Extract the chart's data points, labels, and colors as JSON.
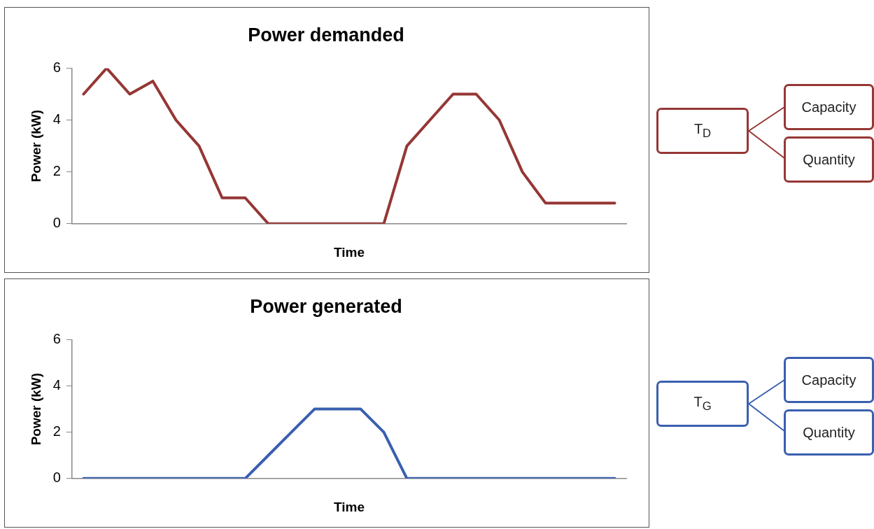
{
  "chart_data": [
    {
      "type": "line",
      "title": "Power demanded",
      "xlabel": "Time",
      "ylabel": "Power (kW)",
      "categories": [
        null,
        null,
        null,
        null,
        null,
        null,
        null,
        null,
        null,
        null,
        null,
        null,
        null,
        null,
        null,
        null,
        null,
        null,
        null,
        null,
        null,
        null,
        null,
        null
      ],
      "series": [
        {
          "color": "#953735",
          "values": [
            5,
            6,
            5,
            5.5,
            4,
            3,
            1,
            1,
            0,
            0,
            0,
            0,
            0,
            0,
            3,
            4,
            5,
            5,
            4,
            2,
            0.8,
            0.8,
            0.8,
            0.8
          ]
        }
      ],
      "ylim": [
        0,
        6
      ],
      "yticks": [
        0,
        2,
        4,
        6
      ],
      "grid": false,
      "legend": false,
      "marker": "none",
      "line_style": "solid",
      "annotations": [
        "T$_{D}$",
        "Capacity",
        "Quantity"
      ]
    },
    {
      "type": "line",
      "title": "Power generated",
      "xlabel": "Time",
      "ylabel": "Power (kW)",
      "categories": [
        null,
        null,
        null,
        null,
        null,
        null,
        null,
        null,
        null,
        null,
        null,
        null,
        null,
        null,
        null,
        null,
        null,
        null,
        null,
        null,
        null,
        null,
        null,
        null
      ],
      "series": [
        {
          "color": "#3a5fb0",
          "values": [
            0,
            0,
            0,
            0,
            0,
            0,
            0,
            0,
            1,
            2,
            3,
            3,
            3,
            2,
            0,
            0,
            0,
            0,
            0,
            0,
            0,
            0,
            0,
            0
          ]
        }
      ],
      "ylim": [
        0,
        6
      ],
      "yticks": [
        0,
        2,
        4,
        6
      ],
      "grid": false,
      "legend": false,
      "marker": "none",
      "line_style": "solid",
      "annotations": [
        "T$_{G}$",
        "Capacity",
        "Quantity"
      ]
    }
  ]
}
